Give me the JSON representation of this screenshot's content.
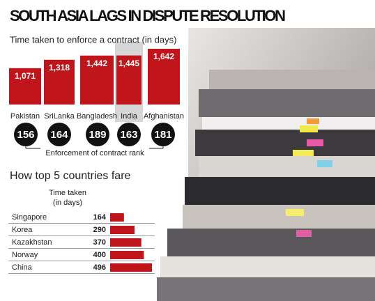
{
  "chart_data": [
    {
      "type": "bar",
      "title": "SOUTH ASIA LAGS IN DISPUTE RESOLUTION",
      "subtitle": "Time taken to enforce a contract (in days)",
      "categories": [
        "Pakistan",
        "SriLanka",
        "Bangladesh",
        "India",
        "Afghanistan"
      ],
      "values": [
        1071,
        1318,
        1442,
        1445,
        1642
      ],
      "value_labels": [
        "1,071",
        "1,318",
        "1,442",
        "1,445",
        "1,642"
      ],
      "color": "#c0161b",
      "ranks": [
        156,
        164,
        189,
        163,
        181
      ],
      "ranks_label": "Enforcement of contract rank"
    },
    {
      "type": "hbar",
      "title": "How top 5 countries fare",
      "value_header": "Time taken (in days)",
      "categories": [
        "Singapore",
        "Korea",
        "Kazakhstan",
        "Norway",
        "China"
      ],
      "values": [
        164,
        290,
        370,
        400,
        496
      ],
      "color": "#c0161b"
    }
  ]
}
